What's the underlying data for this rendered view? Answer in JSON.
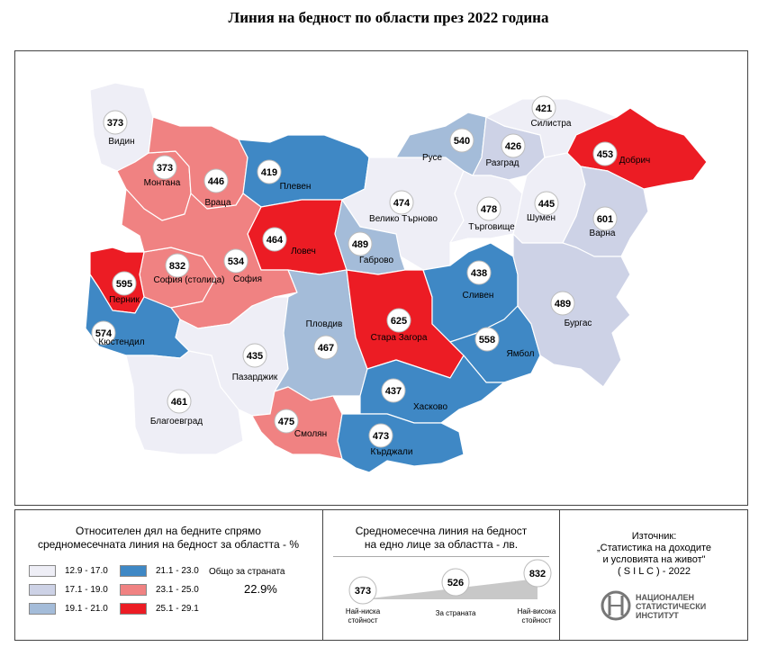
{
  "title": "Линия на бедност по области през 2022 година",
  "colors": {
    "c1": "#eeeef6",
    "c2": "#cdd2e6",
    "c3": "#a4bcd9",
    "c4": "#3f88c5",
    "c5": "#f08282",
    "c6": "#ec1c24"
  },
  "regions": [
    {
      "name": "Видин",
      "value": "373",
      "cls": "c1"
    },
    {
      "name": "Монтана",
      "value": "373",
      "cls": "c5"
    },
    {
      "name": "Враца",
      "value": "446",
      "cls": "c5"
    },
    {
      "name": "Плевен",
      "value": "419",
      "cls": "c4"
    },
    {
      "name": "Ловеч",
      "value": "464",
      "cls": "c6"
    },
    {
      "name": "Велико Търново",
      "value": "474",
      "cls": "c1"
    },
    {
      "name": "Габрово",
      "value": "489",
      "cls": "c3"
    },
    {
      "name": "Русе",
      "value": "540",
      "cls": "c3"
    },
    {
      "name": "Разград",
      "value": "426",
      "cls": "c2"
    },
    {
      "name": "Силистра",
      "value": "421",
      "cls": "c1"
    },
    {
      "name": "Добрич",
      "value": "453",
      "cls": "c6"
    },
    {
      "name": "Търговище",
      "value": "478",
      "cls": "c1"
    },
    {
      "name": "Шумен",
      "value": "445",
      "cls": "c1"
    },
    {
      "name": "Варна",
      "value": "601",
      "cls": "c2"
    },
    {
      "name": "София (столица)",
      "value": "832",
      "cls": "c5"
    },
    {
      "name": "София",
      "value": "534",
      "cls": "c5"
    },
    {
      "name": "Перник",
      "value": "595",
      "cls": "c6"
    },
    {
      "name": "Кюстендил",
      "value": "574",
      "cls": "c4"
    },
    {
      "name": "Благоевград",
      "value": "461",
      "cls": "c1"
    },
    {
      "name": "Пазарджик",
      "value": "435",
      "cls": "c1"
    },
    {
      "name": "Пловдив",
      "value": "467",
      "cls": "c3"
    },
    {
      "name": "Смолян",
      "value": "475",
      "cls": "c5"
    },
    {
      "name": "Стара Загора",
      "value": "625",
      "cls": "c6"
    },
    {
      "name": "Сливен",
      "value": "438",
      "cls": "c4"
    },
    {
      "name": "Ямбол",
      "value": "558",
      "cls": "c4"
    },
    {
      "name": "Бургас",
      "value": "489",
      "cls": "c2"
    },
    {
      "name": "Хасково",
      "value": "437",
      "cls": "c4"
    },
    {
      "name": "Кърджали",
      "value": "473",
      "cls": "c4"
    }
  ],
  "legend": {
    "title": [
      "Относителен дял на бедните спрямо",
      "средномесечната линия на бедност за областта - %"
    ],
    "classes": [
      {
        "label": "12.9  -  17.0",
        "cls": "c1"
      },
      {
        "label": "17.1  -  19.0",
        "cls": "c2"
      },
      {
        "label": "19.1  -  21.0",
        "cls": "c3"
      },
      {
        "label": "21.1  -  23.0",
        "cls": "c4"
      },
      {
        "label": "23.1  -  25.0",
        "cls": "c5"
      },
      {
        "label": "25.1  -  29.1",
        "cls": "c6"
      }
    ],
    "country_label": "Общо за страната",
    "country_value": "22.9%"
  },
  "scale": {
    "title": [
      "Средномесечна линия на бедност",
      "на едно лице за областта - лв."
    ],
    "min_value": "373",
    "avg_value": "526",
    "max_value": "832",
    "min_label": [
      "Най-ниска",
      "стойност"
    ],
    "avg_label": "За страната",
    "max_label": [
      "Най-висока",
      "стойност"
    ]
  },
  "source": {
    "label": "Източник:",
    "lines": [
      "„Статистика на доходите",
      "и условията на живот\"",
      "( S I L C ) - 2022"
    ]
  },
  "nsi": {
    "lines": [
      "НАЦИОНАЛЕН",
      "СТАТИСТИЧЕСКИ",
      "ИНСТИТУТ"
    ]
  }
}
